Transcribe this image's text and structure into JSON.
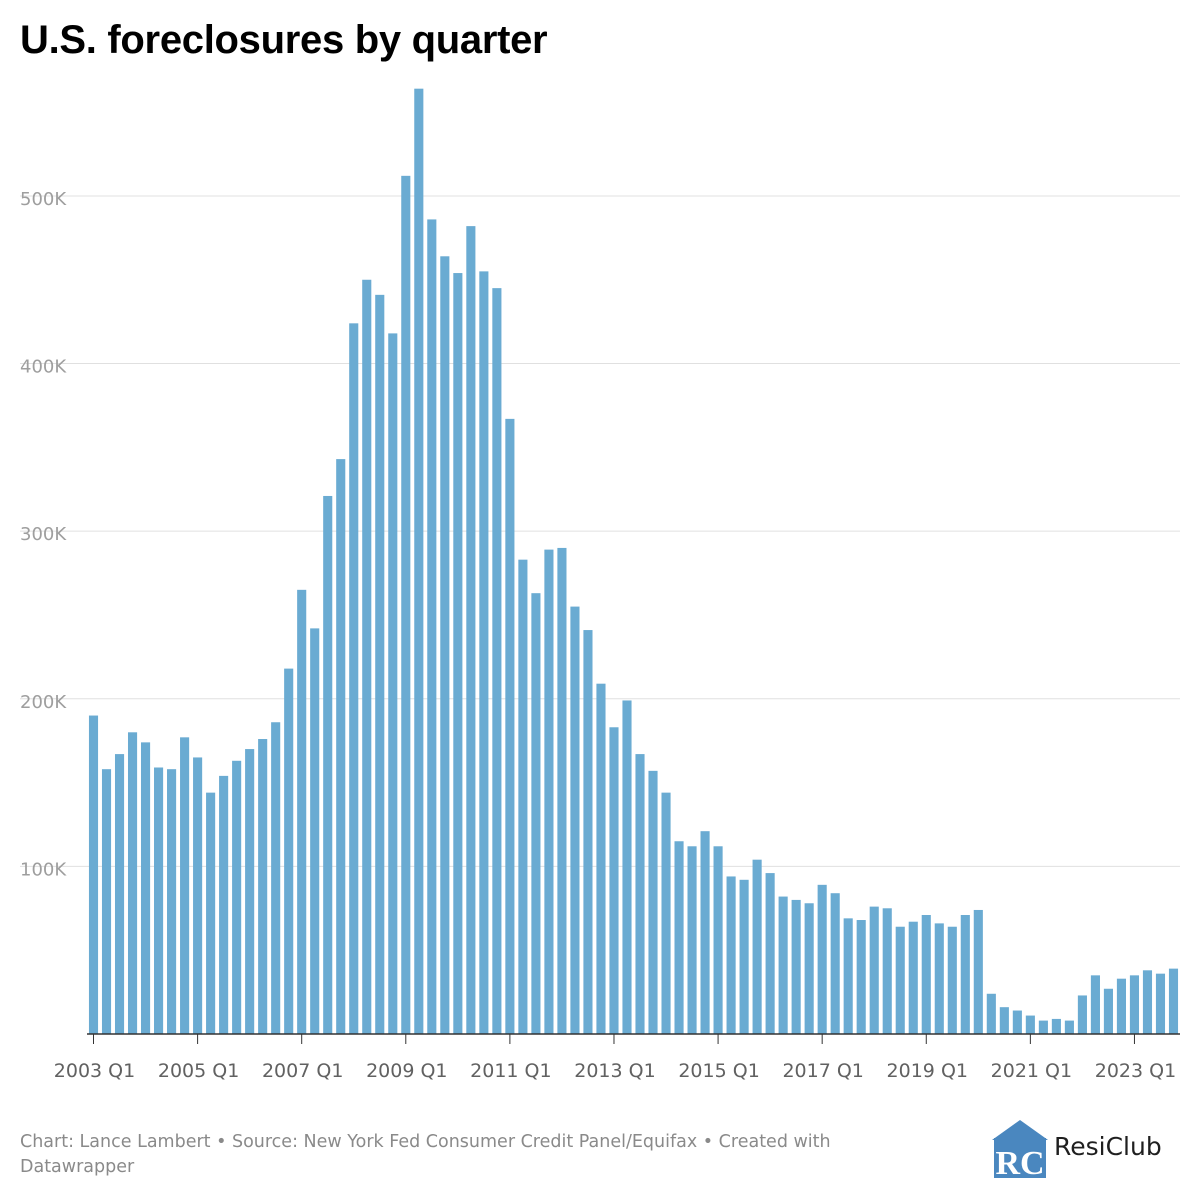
{
  "chart_data": {
    "type": "bar",
    "title": "U.S. foreclosures by quarter",
    "xlabel": "",
    "ylabel": "",
    "ylim": [
      0,
      565000
    ],
    "grid": true,
    "y_ticks": [
      100000,
      200000,
      300000,
      400000,
      500000
    ],
    "y_tick_labels": [
      "100K",
      "200K",
      "300K",
      "400K",
      "500K"
    ],
    "x_tick_labels": [
      "2003 Q1",
      "2005 Q1",
      "2007 Q1",
      "2009 Q1",
      "2011 Q1",
      "2013 Q1",
      "2015 Q1",
      "2017 Q1",
      "2019 Q1",
      "2021 Q1",
      "2023 Q1"
    ],
    "bar_color": "#6aabd2",
    "series": [
      {
        "name": "Foreclosures",
        "values": [
          190000,
          158000,
          167000,
          180000,
          174000,
          159000,
          158000,
          177000,
          165000,
          144000,
          154000,
          163000,
          170000,
          176000,
          186000,
          218000,
          265000,
          242000,
          321000,
          343000,
          424000,
          450000,
          441000,
          418000,
          512000,
          564000,
          486000,
          464000,
          454000,
          482000,
          455000,
          445000,
          367000,
          283000,
          263000,
          289000,
          290000,
          255000,
          241000,
          209000,
          183000,
          199000,
          167000,
          157000,
          144000,
          115000,
          112000,
          121000,
          112000,
          94000,
          92000,
          104000,
          96000,
          82000,
          80000,
          78000,
          89000,
          84000,
          69000,
          68000,
          76000,
          75000,
          64000,
          67000,
          71000,
          66000,
          64000,
          71000,
          74000,
          24000,
          16000,
          14000,
          11000,
          8000,
          9000,
          8000,
          23000,
          35000,
          27000,
          33000,
          35000,
          38000,
          36000,
          39000
        ]
      }
    ],
    "categories": [
      "2003 Q1",
      "2003 Q2",
      "2003 Q3",
      "2003 Q4",
      "2004 Q1",
      "2004 Q2",
      "2004 Q3",
      "2004 Q4",
      "2005 Q1",
      "2005 Q2",
      "2005 Q3",
      "2005 Q4",
      "2006 Q1",
      "2006 Q2",
      "2006 Q3",
      "2006 Q4",
      "2007 Q1",
      "2007 Q2",
      "2007 Q3",
      "2007 Q4",
      "2008 Q1",
      "2008 Q2",
      "2008 Q3",
      "2008 Q4",
      "2009 Q1",
      "2009 Q2",
      "2009 Q3",
      "2009 Q4",
      "2010 Q1",
      "2010 Q2",
      "2010 Q3",
      "2010 Q4",
      "2011 Q1",
      "2011 Q2",
      "2011 Q3",
      "2011 Q4",
      "2012 Q1",
      "2012 Q2",
      "2012 Q3",
      "2012 Q4",
      "2013 Q1",
      "2013 Q2",
      "2013 Q3",
      "2013 Q4",
      "2014 Q1",
      "2014 Q2",
      "2014 Q3",
      "2014 Q4",
      "2015 Q1",
      "2015 Q2",
      "2015 Q3",
      "2015 Q4",
      "2016 Q1",
      "2016 Q2",
      "2016 Q3",
      "2016 Q4",
      "2017 Q1",
      "2017 Q2",
      "2017 Q3",
      "2017 Q4",
      "2018 Q1",
      "2018 Q2",
      "2018 Q3",
      "2018 Q4",
      "2019 Q1",
      "2019 Q2",
      "2019 Q3",
      "2019 Q4",
      "2020 Q1",
      "2020 Q2",
      "2020 Q3",
      "2020 Q4",
      "2021 Q1",
      "2021 Q2",
      "2021 Q3",
      "2021 Q4",
      "2022 Q1",
      "2022 Q2",
      "2022 Q3",
      "2022 Q4",
      "2023 Q1",
      "2023 Q2",
      "2023 Q3",
      "2023 Q4"
    ]
  },
  "footer": {
    "note": "Chart: Lance Lambert • Source: New York Fed Consumer Credit Panel/Equifax • Created with Datawrapper"
  },
  "logo": {
    "text": "ResiClub",
    "mark_letters": "RC",
    "color": "#4a87bf"
  }
}
